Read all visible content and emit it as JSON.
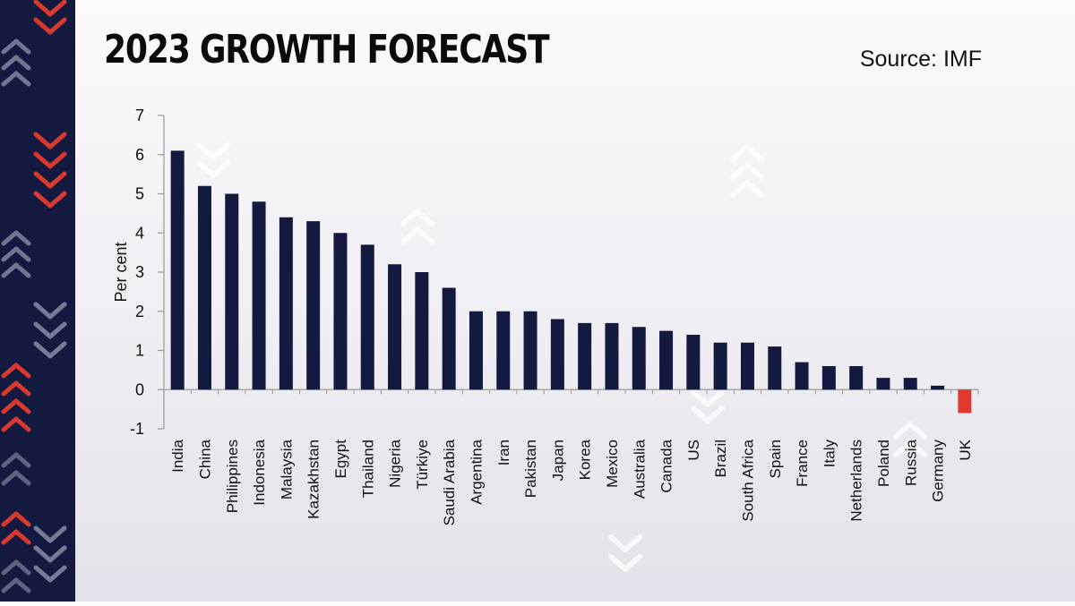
{
  "header": {
    "title": "2023 GROWTH FORECAST",
    "source": "Source: IMF"
  },
  "colors": {
    "bar": "#141a3f",
    "negative_bar": "#e03a2f",
    "sidebar": "#141a3f"
  },
  "chart_data": {
    "type": "bar",
    "title": "2023 GROWTH FORECAST",
    "xlabel": "",
    "ylabel": "Per cent",
    "ylim": [
      -1,
      7
    ],
    "yticks": [
      -1,
      0,
      1,
      2,
      3,
      4,
      5,
      6,
      7
    ],
    "grid": false,
    "categories": [
      "India",
      "China",
      "Philippines",
      "Indonesia",
      "Malaysia",
      "Kazakhstan",
      "Egypt",
      "Thailand",
      "Nigeria",
      "Türkiye",
      "Saudi Arabia",
      "Argentina",
      "Iran",
      "Pakistan",
      "Japan",
      "Korea",
      "Mexico",
      "Australia",
      "Canada",
      "US",
      "Brazil",
      "South Africa",
      "Spain",
      "France",
      "Italy",
      "Netherlands",
      "Poland",
      "Russia",
      "Germany",
      "UK"
    ],
    "values": [
      6.1,
      5.2,
      5.0,
      4.8,
      4.4,
      4.3,
      4.0,
      3.7,
      3.2,
      3.0,
      2.6,
      2.0,
      2.0,
      2.0,
      1.8,
      1.7,
      1.7,
      1.6,
      1.5,
      1.4,
      1.2,
      1.2,
      1.1,
      0.7,
      0.6,
      0.6,
      0.3,
      0.3,
      0.1,
      -0.6
    ]
  }
}
